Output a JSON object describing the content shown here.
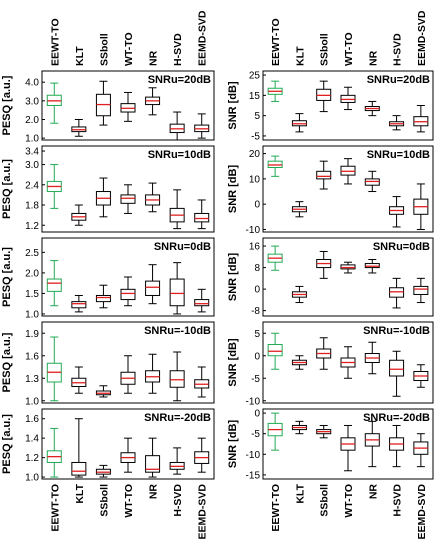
{
  "chart_data": {
    "type": "box",
    "methods": [
      "EEWT-TO",
      "KLT",
      "SSboll",
      "WT-TO",
      "NR",
      "H-SVD",
      "EEMD-SVD"
    ],
    "colors": {
      "highlight": "#22aa55",
      "box": "#000000",
      "median": "#e02020"
    },
    "panels": [
      {
        "column": "left",
        "row": 0,
        "ylabel": "PESQ [a.u.]",
        "snr_label": "SNRu=20dB",
        "ylim": [
          0.9,
          4.6
        ],
        "yticks": [
          "1.0",
          "2.0",
          "3.0",
          "4.0"
        ],
        "ytick_values": [
          1,
          2,
          3,
          4
        ],
        "boxes": [
          {
            "min": 1.8,
            "q1": 2.75,
            "median": 3.0,
            "q3": 3.3,
            "max": 3.95
          },
          {
            "min": 1.1,
            "q1": 1.35,
            "median": 1.45,
            "q3": 1.6,
            "max": 2.0
          },
          {
            "min": 1.7,
            "q1": 2.2,
            "median": 2.8,
            "q3": 3.35,
            "max": 4.05
          },
          {
            "min": 1.9,
            "q1": 2.4,
            "median": 2.6,
            "q3": 2.85,
            "max": 3.45
          },
          {
            "min": 2.25,
            "q1": 2.8,
            "median": 3.0,
            "q3": 3.2,
            "max": 3.7
          },
          {
            "min": 0.9,
            "q1": 1.3,
            "median": 1.5,
            "q3": 1.75,
            "max": 2.4
          },
          {
            "min": 1.0,
            "q1": 1.35,
            "median": 1.5,
            "q3": 1.7,
            "max": 2.3
          }
        ]
      },
      {
        "column": "left",
        "row": 1,
        "ylabel": "PESQ [a.u.]",
        "snr_label": "SNRu=10dB",
        "ylim": [
          1.0,
          3.55
        ],
        "yticks": [
          "1.2",
          "1.8",
          "2.4",
          "3.0",
          "3.4"
        ],
        "ytick_values": [
          1.2,
          1.8,
          2.4,
          3.0,
          3.4
        ],
        "boxes": [
          {
            "min": 1.7,
            "q1": 2.2,
            "median": 2.35,
            "q3": 2.5,
            "max": 3.0
          },
          {
            "min": 1.2,
            "q1": 1.35,
            "median": 1.45,
            "q3": 1.55,
            "max": 1.8
          },
          {
            "min": 1.45,
            "q1": 1.8,
            "median": 2.0,
            "q3": 2.2,
            "max": 2.6
          },
          {
            "min": 1.55,
            "q1": 1.85,
            "median": 2.0,
            "q3": 2.1,
            "max": 2.4
          },
          {
            "min": 1.6,
            "q1": 1.8,
            "median": 1.95,
            "q3": 2.1,
            "max": 2.45
          },
          {
            "min": 1.1,
            "q1": 1.3,
            "median": 1.5,
            "q3": 1.7,
            "max": 2.25
          },
          {
            "min": 1.1,
            "q1": 1.3,
            "median": 1.4,
            "q3": 1.55,
            "max": 1.95
          }
        ]
      },
      {
        "column": "left",
        "row": 2,
        "ylabel": "PESQ [a.u.]",
        "snr_label": "SNRu=0dB",
        "ylim": [
          0.95,
          2.85
        ],
        "yticks": [
          "1.0",
          "1.5",
          "2.0",
          "2.5"
        ],
        "ytick_values": [
          1.0,
          1.5,
          2.0,
          2.5
        ],
        "boxes": [
          {
            "min": 1.2,
            "q1": 1.55,
            "median": 1.75,
            "q3": 1.85,
            "max": 2.3
          },
          {
            "min": 1.05,
            "q1": 1.15,
            "median": 1.25,
            "q3": 1.3,
            "max": 1.45
          },
          {
            "min": 1.15,
            "q1": 1.3,
            "median": 1.4,
            "q3": 1.45,
            "max": 1.7
          },
          {
            "min": 1.2,
            "q1": 1.35,
            "median": 1.5,
            "q3": 1.6,
            "max": 1.9
          },
          {
            "min": 1.25,
            "q1": 1.45,
            "median": 1.65,
            "q3": 1.8,
            "max": 2.2
          },
          {
            "min": 1.0,
            "q1": 1.2,
            "median": 1.5,
            "q3": 1.85,
            "max": 2.25
          },
          {
            "min": 1.05,
            "q1": 1.2,
            "median": 1.25,
            "q3": 1.35,
            "max": 1.6
          }
        ]
      },
      {
        "column": "left",
        "row": 3,
        "ylabel": "PESQ [a.u.]",
        "snr_label": "SNRu=-10dB",
        "ylim": [
          0.97,
          2.05
        ],
        "yticks": [
          "1.0",
          "1.3",
          "1.6",
          "1.9"
        ],
        "ytick_values": [
          1.0,
          1.3,
          1.6,
          1.9
        ],
        "boxes": [
          {
            "min": 1.0,
            "q1": 1.25,
            "median": 1.38,
            "q3": 1.5,
            "max": 1.85
          },
          {
            "min": 1.1,
            "q1": 1.19,
            "median": 1.24,
            "q3": 1.3,
            "max": 1.45
          },
          {
            "min": 1.05,
            "q1": 1.08,
            "median": 1.1,
            "q3": 1.13,
            "max": 1.2
          },
          {
            "min": 1.1,
            "q1": 1.22,
            "median": 1.3,
            "q3": 1.38,
            "max": 1.6
          },
          {
            "min": 1.1,
            "q1": 1.25,
            "median": 1.32,
            "q3": 1.4,
            "max": 1.62
          },
          {
            "min": 1.0,
            "q1": 1.18,
            "median": 1.28,
            "q3": 1.4,
            "max": 1.65
          },
          {
            "min": 1.05,
            "q1": 1.17,
            "median": 1.22,
            "q3": 1.28,
            "max": 1.45
          }
        ]
      },
      {
        "column": "left",
        "row": 4,
        "ylabel": "PESQ [a.u.]",
        "snr_label": "SNRu=-20dB",
        "ylim": [
          0.98,
          1.7
        ],
        "yticks": [
          "1.0",
          "1.2",
          "1.4",
          "1.6"
        ],
        "ytick_values": [
          1.0,
          1.2,
          1.4,
          1.6
        ],
        "boxes": [
          {
            "min": 1.0,
            "q1": 1.15,
            "median": 1.21,
            "q3": 1.27,
            "max": 1.5
          },
          {
            "min": 1.0,
            "q1": 1.02,
            "median": 1.06,
            "q3": 1.15,
            "max": 1.6
          },
          {
            "min": 1.0,
            "q1": 1.03,
            "median": 1.05,
            "q3": 1.08,
            "max": 1.12
          },
          {
            "min": 1.05,
            "q1": 1.15,
            "median": 1.2,
            "q3": 1.25,
            "max": 1.4
          },
          {
            "min": 1.0,
            "q1": 1.05,
            "median": 1.08,
            "q3": 1.22,
            "max": 1.4
          },
          {
            "min": 1.03,
            "q1": 1.08,
            "median": 1.11,
            "q3": 1.15,
            "max": 1.3
          },
          {
            "min": 1.05,
            "q1": 1.14,
            "median": 1.2,
            "q3": 1.26,
            "max": 1.4
          }
        ]
      },
      {
        "column": "right",
        "row": 0,
        "ylabel": "SNR [dB]",
        "snr_label": "SNRu=20dB",
        "ylim": [
          -7,
          27
        ],
        "yticks": [
          "-5",
          "5",
          "15",
          "25"
        ],
        "ytick_values": [
          -5,
          5,
          15,
          25
        ],
        "boxes": [
          {
            "min": 12,
            "q1": 15.5,
            "median": 17,
            "q3": 18.5,
            "max": 22
          },
          {
            "min": -3,
            "q1": 0,
            "median": 1,
            "q3": 2.5,
            "max": 6
          },
          {
            "min": 7,
            "q1": 12.5,
            "median": 15,
            "q3": 18,
            "max": 22
          },
          {
            "min": 8,
            "q1": 11.5,
            "median": 13,
            "q3": 15,
            "max": 19
          },
          {
            "min": 5,
            "q1": 7.5,
            "median": 8.5,
            "q3": 9.5,
            "max": 12
          },
          {
            "min": -2,
            "q1": 0,
            "median": 1,
            "q3": 2,
            "max": 5
          },
          {
            "min": -3,
            "q1": 0,
            "median": 2,
            "q3": 4.5,
            "max": 10
          }
        ]
      },
      {
        "column": "right",
        "row": 1,
        "ylabel": "SNR [dB]",
        "snr_label": "SNRu=10dB",
        "ylim": [
          -11,
          23
        ],
        "yticks": [
          "-10",
          "0",
          "10",
          "20"
        ],
        "ytick_values": [
          -10,
          0,
          10,
          20
        ],
        "boxes": [
          {
            "min": 11,
            "q1": 14.5,
            "median": 15.5,
            "q3": 17,
            "max": 19
          },
          {
            "min": -5,
            "q1": -3,
            "median": -2,
            "q3": -1,
            "max": 1
          },
          {
            "min": 6,
            "q1": 10,
            "median": 11,
            "q3": 13,
            "max": 17
          },
          {
            "min": 8,
            "q1": 11.5,
            "median": 13,
            "q3": 15,
            "max": 18
          },
          {
            "min": 5,
            "q1": 7.5,
            "median": 9,
            "q3": 10,
            "max": 13
          },
          {
            "min": -9,
            "q1": -4,
            "median": -2.5,
            "q3": -1,
            "max": 3
          },
          {
            "min": -10,
            "q1": -4,
            "median": -1,
            "q3": 2,
            "max": 8
          }
        ]
      },
      {
        "column": "right",
        "row": 2,
        "ylabel": "SNR [dB]",
        "snr_label": "SNRu=0dB",
        "ylim": [
          -10,
          19
        ],
        "yticks": [
          "-8",
          "0",
          "8",
          "16"
        ],
        "ytick_values": [
          -8,
          0,
          8,
          16
        ],
        "boxes": [
          {
            "min": 7,
            "q1": 10,
            "median": 11.5,
            "q3": 13,
            "max": 16
          },
          {
            "min": -5,
            "q1": -3,
            "median": -2,
            "q3": -1,
            "max": 1
          },
          {
            "min": 4,
            "q1": 8,
            "median": 9.5,
            "q3": 11,
            "max": 14
          },
          {
            "min": 6,
            "q1": 7.5,
            "median": 8,
            "q3": 9,
            "max": 10
          },
          {
            "min": 6,
            "q1": 8,
            "median": 8.5,
            "q3": 9.5,
            "max": 11
          },
          {
            "min": -7,
            "q1": -3,
            "median": -1,
            "q3": 0.5,
            "max": 4
          },
          {
            "min": -5,
            "q1": -2,
            "median": 0,
            "q3": 1,
            "max": 4
          }
        ]
      },
      {
        "column": "right",
        "row": 3,
        "ylabel": "SNR [dB]",
        "snr_label": "SNRu=-10dB",
        "ylim": [
          -10.5,
          7.5
        ],
        "yticks": [
          "-10",
          "-5",
          "0",
          "5"
        ],
        "ytick_values": [
          -10,
          -5,
          0,
          5
        ],
        "boxes": [
          {
            "min": -3,
            "q1": 0,
            "median": 1,
            "q3": 2.5,
            "max": 5
          },
          {
            "min": -3,
            "q1": -2,
            "median": -1.5,
            "q3": -1,
            "max": 0
          },
          {
            "min": -3,
            "q1": -0.5,
            "median": 0.5,
            "q3": 1.5,
            "max": 4
          },
          {
            "min": -5,
            "q1": -2.5,
            "median": -1.5,
            "q3": -0.5,
            "max": 2
          },
          {
            "min": -4,
            "q1": -1.5,
            "median": -0.5,
            "q3": 0.5,
            "max": 3
          },
          {
            "min": -9,
            "q1": -4.5,
            "median": -3,
            "q3": -1,
            "max": 1
          },
          {
            "min": -7,
            "q1": -5.5,
            "median": -4.5,
            "q3": -3.5,
            "max": -2
          }
        ]
      },
      {
        "column": "right",
        "row": 4,
        "ylabel": "SNR [dB]",
        "snr_label": "SNRu=-20dB",
        "ylim": [
          -16,
          1
        ],
        "yticks": [
          "-15",
          "-10",
          "-5",
          "0"
        ],
        "ytick_values": [
          -15,
          -10,
          -5,
          0
        ],
        "boxes": [
          {
            "min": -9,
            "q1": -5.5,
            "median": -4,
            "q3": -2.5,
            "max": 0
          },
          {
            "min": -5,
            "q1": -4,
            "median": -3.5,
            "q3": -3,
            "max": -2
          },
          {
            "min": -6,
            "q1": -5,
            "median": -4.5,
            "q3": -4,
            "max": -3
          },
          {
            "min": -14,
            "q1": -9,
            "median": -7.5,
            "q3": -6,
            "max": -3
          },
          {
            "min": -13,
            "q1": -8,
            "median": -6.5,
            "q3": -5,
            "max": -2
          },
          {
            "min": -13,
            "q1": -9,
            "median": -7.5,
            "q3": -6,
            "max": -3
          },
          {
            "min": -13,
            "q1": -10,
            "median": -8.5,
            "q3": -7,
            "max": -5
          }
        ]
      }
    ]
  }
}
